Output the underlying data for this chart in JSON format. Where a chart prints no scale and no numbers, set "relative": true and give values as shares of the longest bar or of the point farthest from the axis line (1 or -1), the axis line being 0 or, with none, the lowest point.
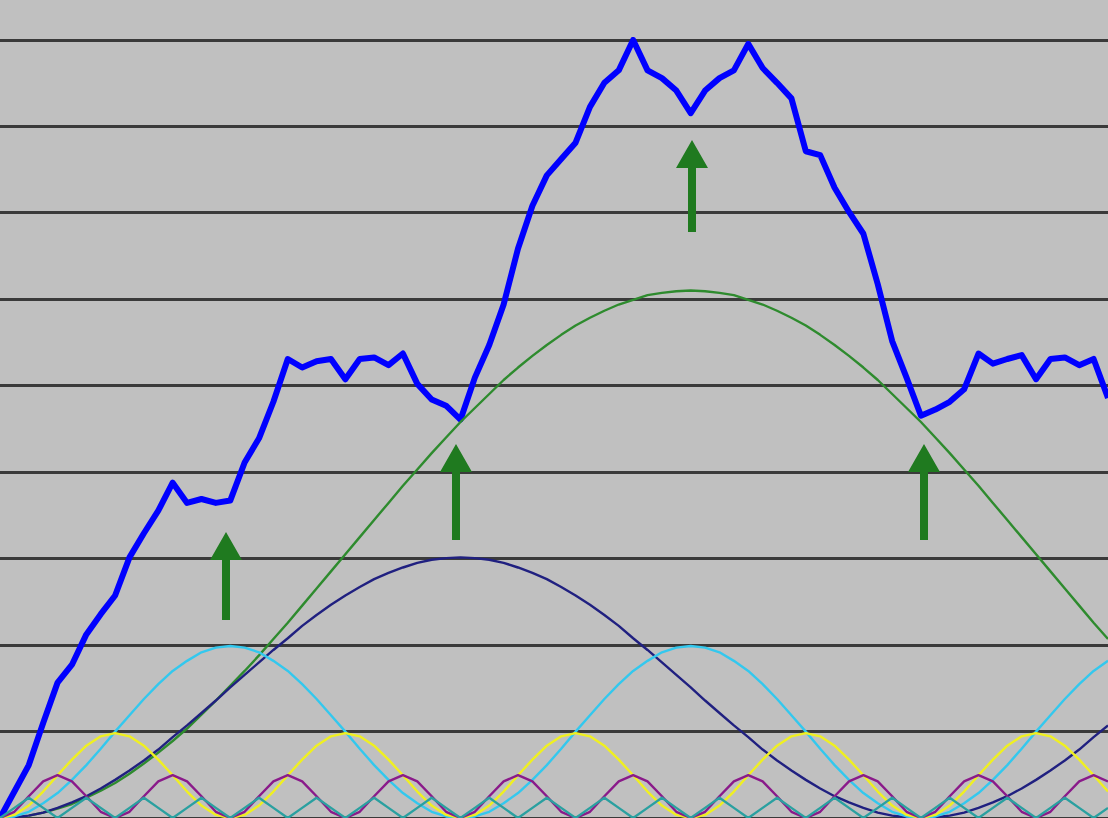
{
  "chart_data": {
    "type": "line",
    "relative": true,
    "grid": "y",
    "legend": false,
    "marker": "none",
    "line_style": "solid",
    "categories": [
      null,
      null,
      null,
      null,
      null,
      null,
      null,
      null,
      null,
      null,
      null,
      null,
      null,
      null,
      null,
      null,
      null,
      null,
      null,
      null,
      null,
      null,
      null,
      null,
      null,
      null,
      null,
      null,
      null,
      null,
      null,
      null,
      null,
      null,
      null,
      null,
      null,
      null,
      null,
      null,
      null,
      null,
      null,
      null,
      null,
      null,
      null,
      null,
      null,
      null,
      null,
      null,
      null,
      null,
      null,
      null,
      null,
      null,
      null,
      null,
      null,
      null,
      null,
      null,
      null,
      null,
      null,
      null,
      null,
      null,
      null,
      null,
      null,
      null,
      null,
      null,
      null,
      null
    ],
    "series": [
      {
        "color": "#2aa0a0",
        "values": [
          0,
          0.013,
          0.026,
          0.013,
          0,
          0.013,
          0.026,
          0.013,
          0,
          0.013,
          0.026,
          0.013,
          0,
          0.013,
          0.026,
          0.013,
          0,
          0.013,
          0.026,
          0.013,
          0,
          0.013,
          0.026,
          0.013,
          0,
          0.013,
          0.026,
          0.013,
          0,
          0.013,
          0.026,
          0.013,
          0,
          0.013,
          0.026,
          0.013,
          0,
          0.013,
          0.026,
          0.013,
          0,
          0.013,
          0.026,
          0.013,
          0,
          0.013,
          0.026,
          0.013,
          0,
          0.013,
          0.026,
          0.013,
          0,
          0.013,
          0.026,
          0.013,
          0,
          0.013,
          0.026,
          0.013,
          0,
          0.013,
          0.026,
          0.013,
          0,
          0.013,
          0.026,
          0.013,
          0,
          0.013,
          0.026,
          0.013,
          0,
          0.013,
          0.026,
          0.013,
          0,
          0.013
        ]
      },
      {
        "color": "#8a1a8a",
        "values": [
          0,
          0.008,
          0.028,
          0.047,
          0.055,
          0.047,
          0.028,
          0.008,
          0,
          0.008,
          0.028,
          0.047,
          0.055,
          0.047,
          0.028,
          0.008,
          0,
          0.008,
          0.028,
          0.047,
          0.055,
          0.047,
          0.028,
          0.008,
          0,
          0.008,
          0.028,
          0.047,
          0.055,
          0.047,
          0.028,
          0.008,
          0,
          0.008,
          0.028,
          0.047,
          0.055,
          0.047,
          0.028,
          0.008,
          0,
          0.008,
          0.028,
          0.047,
          0.055,
          0.047,
          0.028,
          0.008,
          0,
          0.008,
          0.028,
          0.047,
          0.055,
          0.047,
          0.028,
          0.008,
          0,
          0.008,
          0.028,
          0.047,
          0.055,
          0.047,
          0.028,
          0.008,
          0,
          0.008,
          0.028,
          0.047,
          0.055,
          0.047,
          0.028,
          0.008,
          0,
          0.008,
          0.028,
          0.047,
          0.055,
          0.047
        ]
      },
      {
        "color": "#f0f020",
        "values": [
          0,
          0.004,
          0.016,
          0.034,
          0.055,
          0.075,
          0.093,
          0.105,
          0.109,
          0.105,
          0.093,
          0.075,
          0.055,
          0.034,
          0.016,
          0.004,
          0,
          0.004,
          0.016,
          0.034,
          0.055,
          0.075,
          0.093,
          0.105,
          0.109,
          0.105,
          0.093,
          0.075,
          0.055,
          0.034,
          0.016,
          0.004,
          0,
          0.004,
          0.016,
          0.034,
          0.055,
          0.075,
          0.093,
          0.105,
          0.109,
          0.105,
          0.093,
          0.075,
          0.055,
          0.034,
          0.016,
          0.004,
          0,
          0.004,
          0.016,
          0.034,
          0.055,
          0.075,
          0.093,
          0.105,
          0.109,
          0.105,
          0.093,
          0.075,
          0.055,
          0.034,
          0.016,
          0.004,
          0,
          0.004,
          0.016,
          0.034,
          0.055,
          0.075,
          0.093,
          0.105,
          0.109,
          0.105,
          0.093,
          0.075,
          0.055,
          0.034
        ]
      },
      {
        "color": "#33c8ee",
        "values": [
          0,
          0.002,
          0.008,
          0.019,
          0.032,
          0.049,
          0.068,
          0.089,
          0.111,
          0.132,
          0.153,
          0.172,
          0.189,
          0.202,
          0.213,
          0.219,
          0.221,
          0.219,
          0.213,
          0.202,
          0.189,
          0.172,
          0.153,
          0.132,
          0.111,
          0.089,
          0.068,
          0.049,
          0.032,
          0.019,
          0.008,
          0.002,
          0,
          0.002,
          0.008,
          0.019,
          0.032,
          0.049,
          0.068,
          0.089,
          0.111,
          0.132,
          0.153,
          0.172,
          0.189,
          0.202,
          0.213,
          0.219,
          0.221,
          0.219,
          0.213,
          0.202,
          0.189,
          0.172,
          0.153,
          0.132,
          0.111,
          0.089,
          0.068,
          0.049,
          0.032,
          0.019,
          0.008,
          0.002,
          0,
          0.002,
          0.008,
          0.019,
          0.032,
          0.049,
          0.068,
          0.089,
          0.111,
          0.132,
          0.153,
          0.172,
          0.189,
          0.202
        ]
      },
      {
        "color": "#202080",
        "values": [
          0,
          0.001,
          0.003,
          0.007,
          0.013,
          0.02,
          0.028,
          0.038,
          0.049,
          0.061,
          0.074,
          0.088,
          0.104,
          0.119,
          0.135,
          0.151,
          0.168,
          0.184,
          0.2,
          0.216,
          0.231,
          0.247,
          0.261,
          0.274,
          0.286,
          0.297,
          0.307,
          0.315,
          0.322,
          0.328,
          0.332,
          0.334,
          0.335,
          0.334,
          0.332,
          0.328,
          0.322,
          0.315,
          0.307,
          0.297,
          0.286,
          0.274,
          0.261,
          0.247,
          0.231,
          0.216,
          0.2,
          0.184,
          0.168,
          0.151,
          0.135,
          0.119,
          0.104,
          0.088,
          0.074,
          0.061,
          0.049,
          0.038,
          0.028,
          0.02,
          0.013,
          0.007,
          0.003,
          0.001,
          0,
          0.001,
          0.003,
          0.007,
          0.013,
          0.02,
          0.028,
          0.038,
          0.049,
          0.061,
          0.074,
          0.088,
          0.104,
          0.119
        ]
      },
      {
        "color": "#2e8b2e",
        "values": [
          null,
          null,
          0.003,
          0.007,
          0.012,
          0.018,
          0.026,
          0.035,
          0.045,
          0.057,
          0.07,
          0.084,
          0.099,
          0.115,
          0.133,
          0.151,
          0.17,
          0.189,
          0.209,
          0.23,
          0.251,
          0.273,
          0.295,
          0.317,
          0.339,
          0.361,
          0.383,
          0.405,
          0.427,
          0.448,
          0.469,
          0.489,
          0.509,
          0.527,
          0.545,
          0.563,
          0.579,
          0.594,
          0.608,
          0.621,
          0.633,
          0.643,
          0.652,
          0.66,
          0.666,
          0.672,
          0.675,
          0.677,
          0.678,
          0.677,
          0.675,
          0.672,
          0.666,
          0.66,
          0.652,
          0.643,
          0.633,
          0.621,
          0.608,
          0.594,
          0.579,
          0.563,
          0.545,
          0.527,
          0.509,
          0.489,
          0.469,
          0.448,
          0.427,
          0.405,
          0.383,
          0.361,
          0.339,
          0.317,
          0.295,
          0.273,
          0.251,
          0.23
        ]
      },
      {
        "color": "#0000ff",
        "values": [
          0,
          0.034,
          0.068,
          0.122,
          0.174,
          0.197,
          0.236,
          0.262,
          0.286,
          0.335,
          0.366,
          0.395,
          0.431,
          0.405,
          0.41,
          0.405,
          0.408,
          0.457,
          0.488,
          0.535,
          0.59,
          0.579,
          0.587,
          0.59,
          0.564,
          0.59,
          0.592,
          0.582,
          0.597,
          0.558,
          0.538,
          0.53,
          0.512,
          0.566,
          0.608,
          0.66,
          0.732,
          0.787,
          0.826,
          0.847,
          0.868,
          0.914,
          0.945,
          0.961,
          1,
          0.961,
          0.951,
          0.935,
          0.906,
          0.935,
          0.951,
          0.961,
          0.995,
          0.964,
          0.945,
          0.925,
          0.857,
          0.852,
          0.81,
          0.779,
          0.751,
          0.686,
          0.613,
          0.566,
          0.517,
          0.525,
          0.535,
          0.551,
          0.597,
          0.584,
          0.59,
          0.595,
          0.564,
          0.59,
          0.592,
          0.582,
          0.59,
          0.54
        ]
      }
    ]
  }
}
